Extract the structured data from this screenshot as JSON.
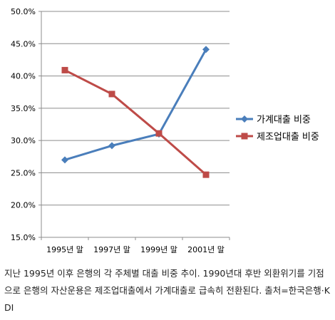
{
  "chart_data": {
    "type": "line",
    "categories": [
      "1995년 말",
      "1997년 말",
      "1999년 말",
      "2001년 말"
    ],
    "series": [
      {
        "name": "가계대출 비중",
        "values": [
          27.0,
          29.2,
          31.0,
          44.1
        ],
        "color": "#4a7ebb",
        "marker": "diamond"
      },
      {
        "name": "제조업대출 비중",
        "values": [
          40.9,
          37.2,
          31.1,
          24.7
        ],
        "color": "#be4b48",
        "marker": "square"
      }
    ],
    "ylim": [
      15.0,
      50.0
    ],
    "yticks": [
      "15.0%",
      "20.0%",
      "25.0%",
      "30.0%",
      "35.0%",
      "40.0%",
      "45.0%",
      "50.0%"
    ],
    "grid": true,
    "legend": "right",
    "title": "",
    "xlabel": "",
    "ylabel": ""
  },
  "caption": "지난 1995년 이후 은행의 각 주체별 대출 비중 추이. 1990년대 후반 외환위기를 기점으로 은행의 자산운용은 제조업대출에서 가계대출로 급속히 전환된다. 출처=한국은행·KDI"
}
